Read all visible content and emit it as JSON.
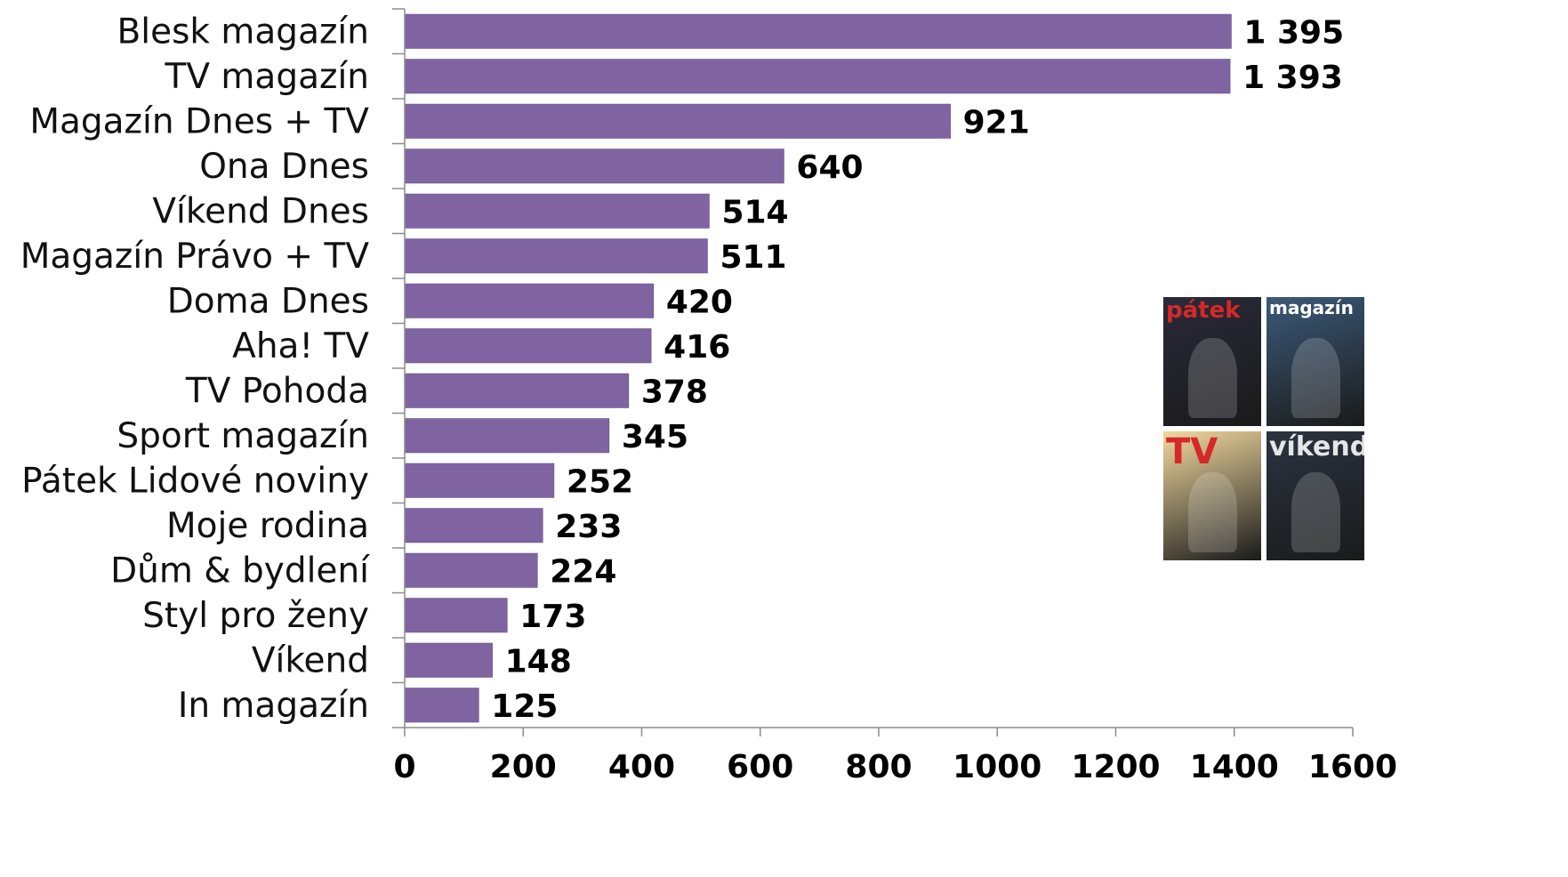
{
  "chart_data": {
    "type": "bar",
    "orientation": "horizontal",
    "categories": [
      "Blesk magazín",
      "TV magazín",
      "Magazín Dnes + TV",
      "Ona Dnes",
      "Víkend Dnes",
      "Magazín Právo + TV",
      "Doma Dnes",
      "Aha! TV",
      "TV Pohoda",
      "Sport magazín",
      "Pátek Lidové noviny",
      "Moje rodina",
      "Dům & bydlení",
      "Styl pro ženy",
      "Víkend",
      "In magazín"
    ],
    "values": [
      1395,
      1393,
      921,
      640,
      514,
      511,
      420,
      416,
      378,
      345,
      252,
      233,
      224,
      173,
      148,
      125
    ],
    "value_labels": [
      "1 395",
      "1 393",
      "921",
      "640",
      "514",
      "511",
      "420",
      "416",
      "378",
      "345",
      "252",
      "233",
      "224",
      "173",
      "148",
      "125"
    ],
    "xlim": [
      0,
      1600
    ],
    "x_ticks": [
      "0",
      "200",
      "400",
      "600",
      "800",
      "1000",
      "1200",
      "1400",
      "1600"
    ],
    "bar_color": "#8064a2",
    "grid": false,
    "title": "",
    "xlabel": "",
    "ylabel": ""
  },
  "inset_image": {
    "covers": [
      {
        "title": "pátek",
        "bg": "#2a2a3a",
        "title_color": "#d62828"
      },
      {
        "title": "magazín",
        "bg": "#3c5a7a",
        "title_color": "#ffffff"
      },
      {
        "title": "TV",
        "bg": "#f2d9a0",
        "title_color": "#d62828"
      },
      {
        "title": "víkend",
        "bg": "#2b3442",
        "title_color": "#e6e6e6"
      }
    ]
  }
}
